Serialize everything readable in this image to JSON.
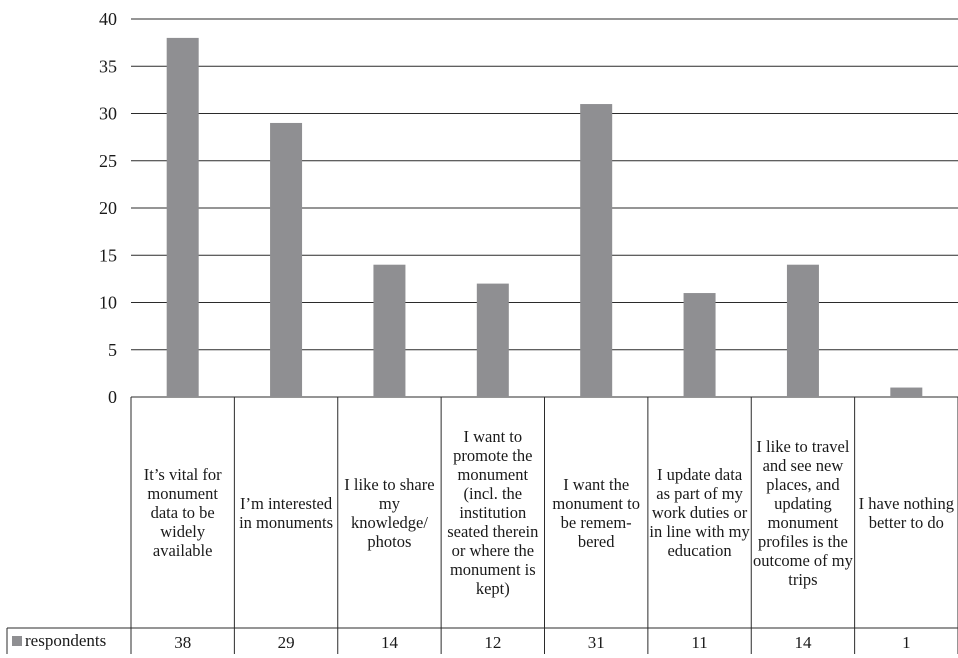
{
  "chart_data": {
    "type": "bar",
    "categories": [
      "It’s vital for monument data to be widely available",
      "I’m interested in monuments",
      "I like to share my knowledge/ photos",
      "I want to promote the monument (incl. the institution seated therein or where the monument is kept)",
      "I want the monument to be remem- bered",
      "I update data as part of my work duties or in line with my education",
      "I like to travel and see new places, and updating monument profiles is the outcome of my trips",
      "I have nothing better to do"
    ],
    "series": [
      {
        "name": "respondents",
        "values": [
          38,
          29,
          14,
          12,
          31,
          11,
          14,
          1
        ]
      }
    ],
    "values_labels": [
      "38",
      "29",
      "14",
      "12",
      "31",
      "11",
      "14",
      "1"
    ],
    "ylim": [
      0,
      40
    ],
    "yticks": [
      0,
      5,
      10,
      15,
      20,
      25,
      30,
      35,
      40
    ],
    "ytick_labels": [
      "0",
      "5",
      "10",
      "15",
      "20",
      "25",
      "30",
      "35",
      "40"
    ],
    "grid": true,
    "legend": "data-table-left",
    "colors": {
      "bar": "#8f8f92"
    }
  }
}
